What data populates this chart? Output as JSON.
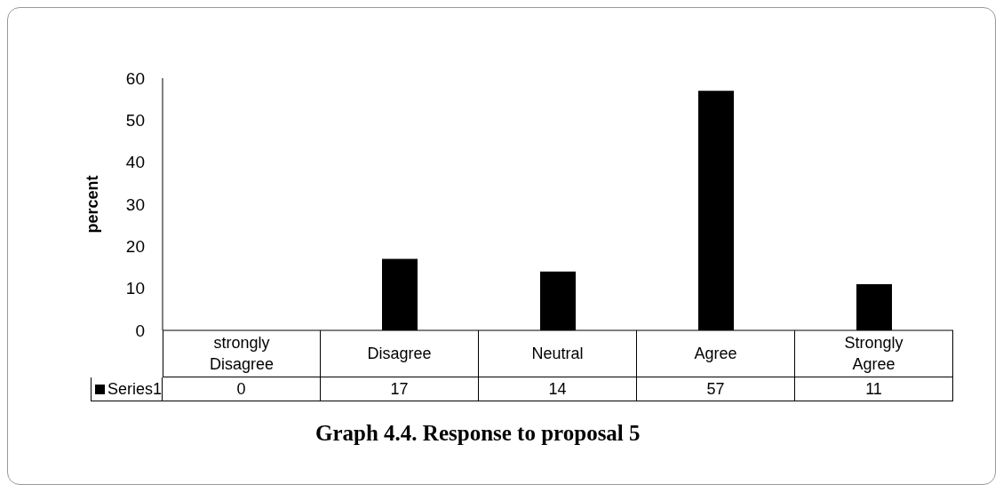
{
  "chart_data": {
    "type": "bar",
    "title": "Graph 4.4. Response to proposal 5",
    "ylabel": "percent",
    "categories": [
      "strongly Disagree",
      "Disagree",
      "Neutral",
      "Agree",
      "Strongly Agree"
    ],
    "series": [
      {
        "name": "Series1",
        "color": "#000000",
        "values": [
          0,
          17,
          14,
          57,
          11
        ]
      }
    ],
    "ylim": [
      0,
      60
    ],
    "yticks": [
      0,
      10,
      20,
      30,
      40,
      50,
      60
    ],
    "grid": false,
    "legend": "bottom",
    "data_labels": true
  }
}
